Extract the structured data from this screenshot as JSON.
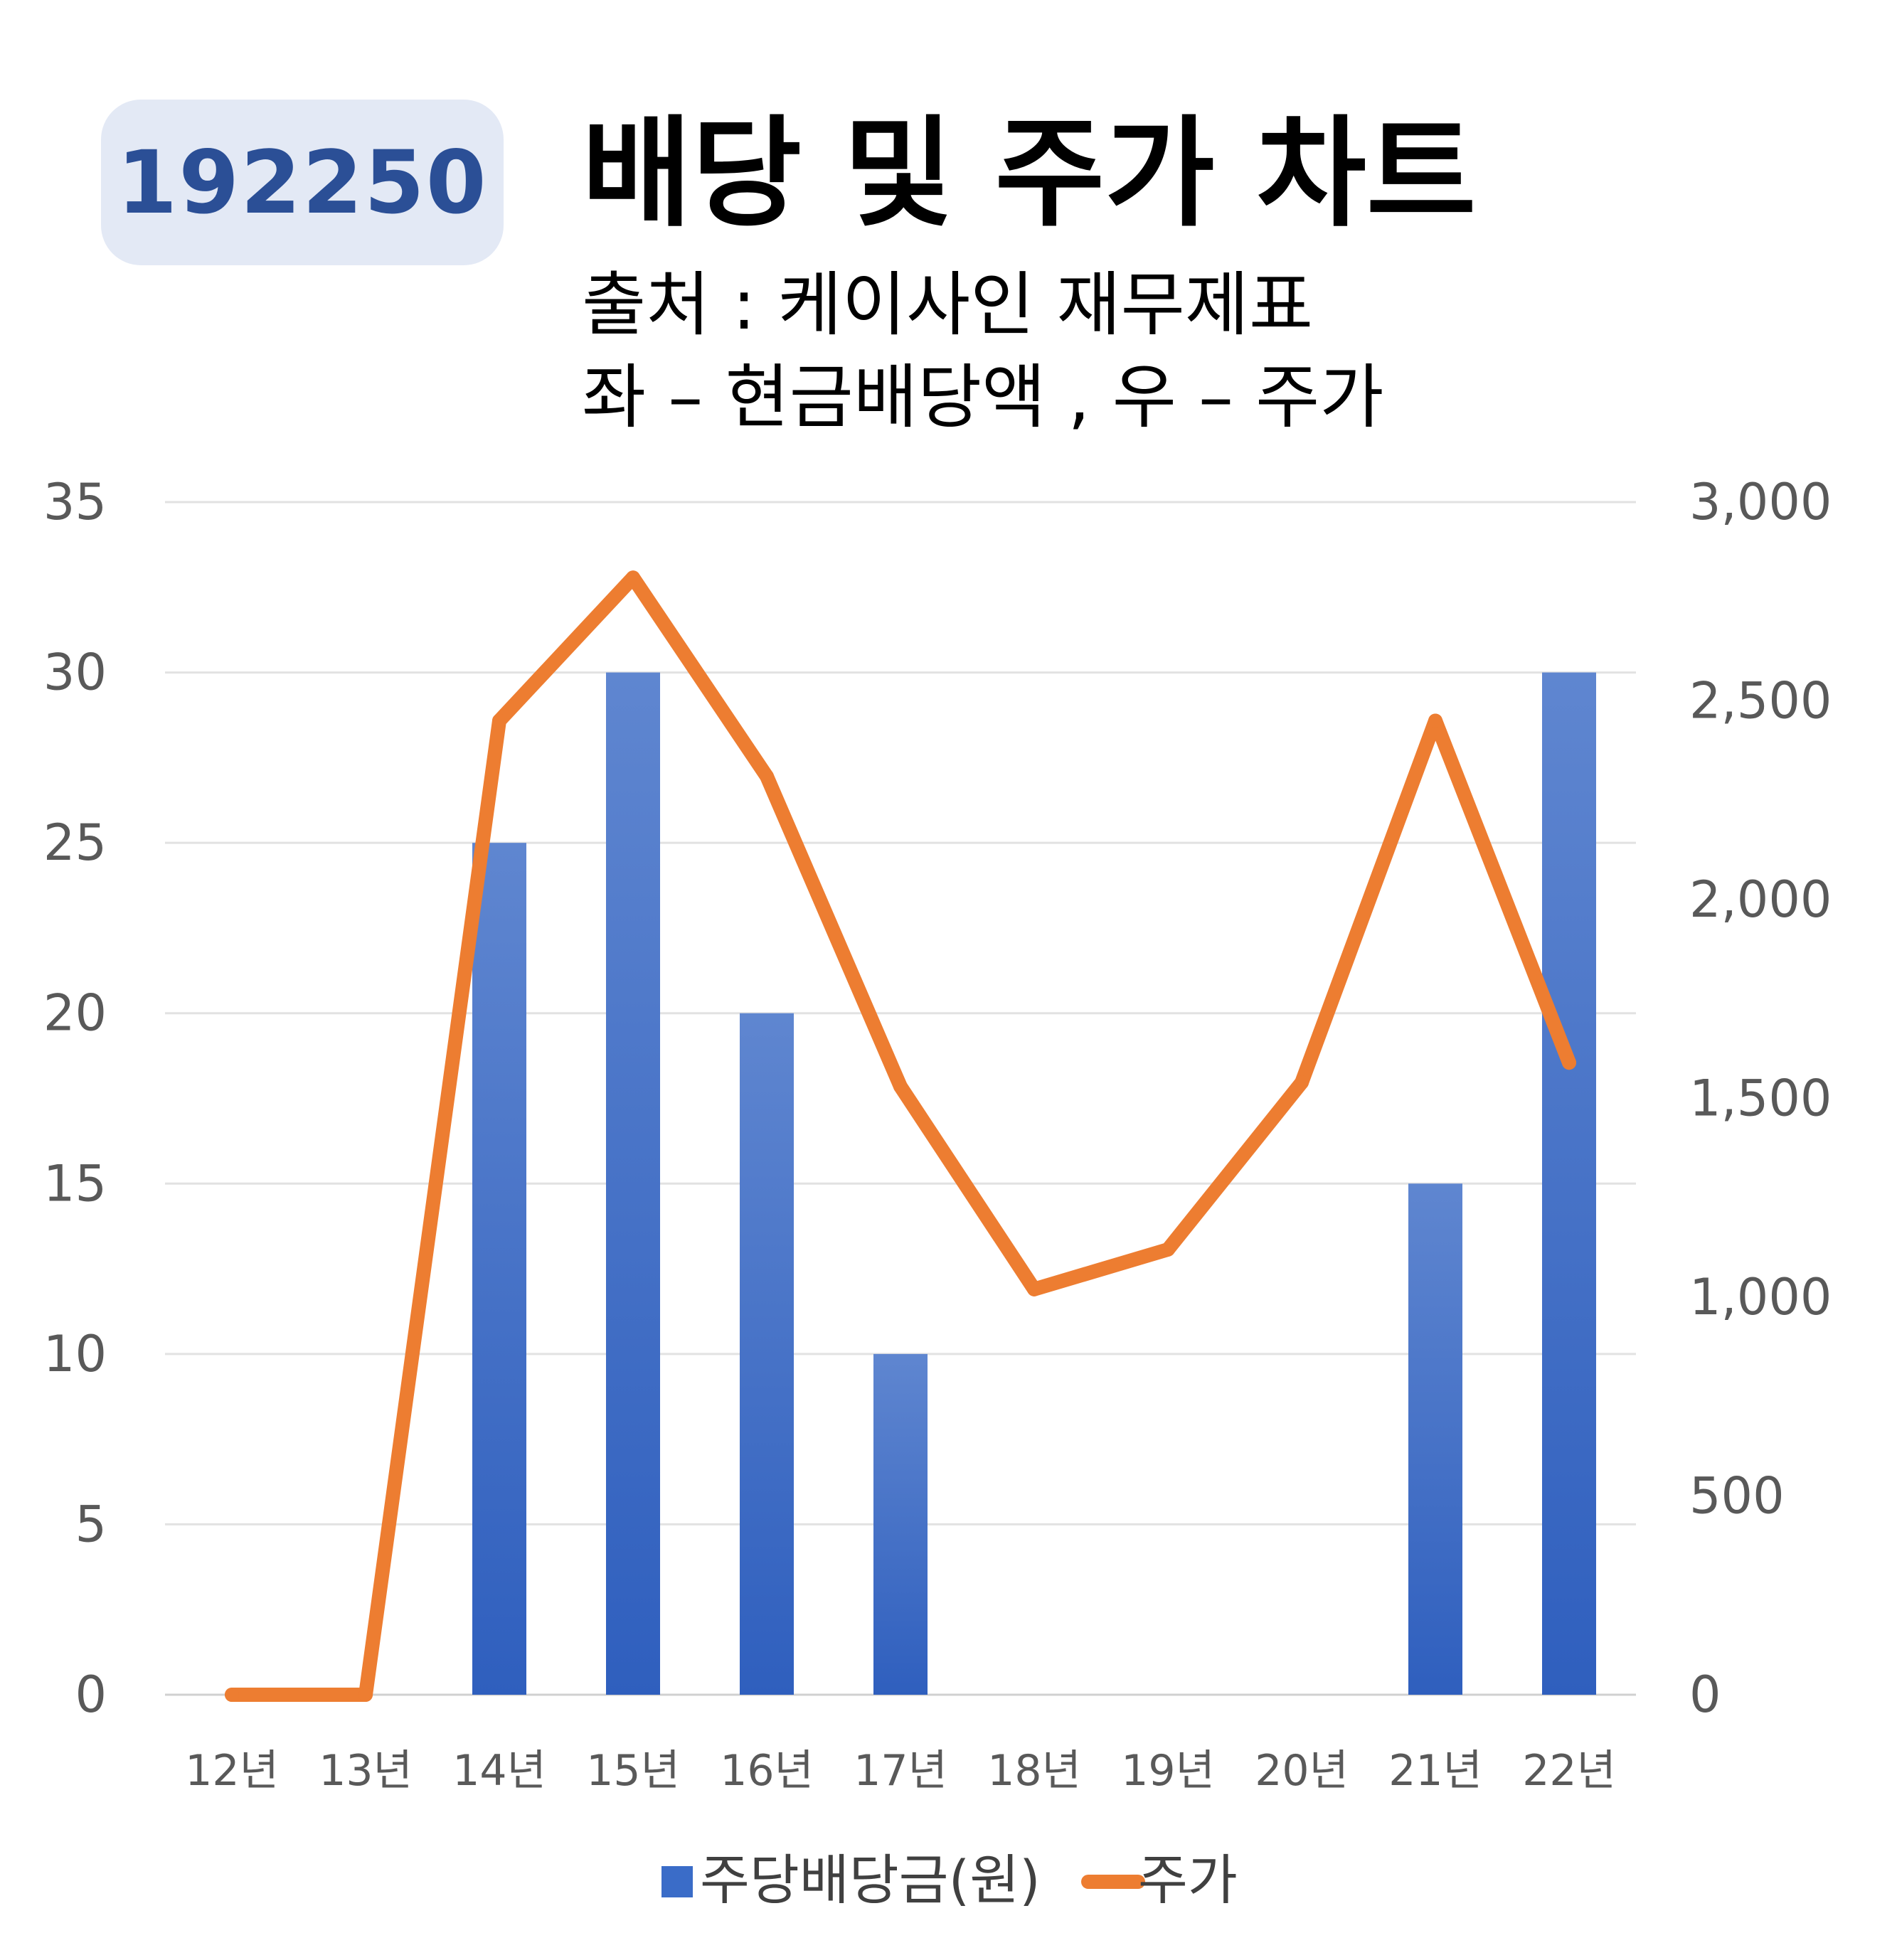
{
  "header": {
    "code": "192250",
    "title": "배당 및 주가 차트",
    "source": "출처 : 케이사인 재무제표",
    "axes_note": "좌 – 현금배당액  ,  우 – 주가"
  },
  "colors": {
    "bar": "#3a6cc8",
    "line": "#ed7d31",
    "badge_bg": "#e3e9f5",
    "badge_text": "#2b4f96"
  },
  "chart_data": {
    "type": "bar",
    "categories": [
      "12년",
      "13년",
      "14년",
      "15년",
      "16년",
      "17년",
      "18년",
      "19년",
      "20년",
      "21년",
      "22년"
    ],
    "series": [
      {
        "name": "주당배당금(원)",
        "type": "bar",
        "axis": "left",
        "values": [
          0,
          0,
          25,
          30,
          20,
          10,
          0,
          0,
          0,
          15,
          30
        ]
      },
      {
        "name": "주가",
        "type": "line",
        "axis": "right",
        "values": [
          0,
          0,
          2450,
          2810,
          2310,
          1530,
          1020,
          1120,
          1540,
          2450,
          1590
        ]
      }
    ],
    "y_left": {
      "min": 0,
      "max": 35,
      "ticks": [
        "0",
        "5",
        "10",
        "15",
        "20",
        "25",
        "30",
        "35"
      ]
    },
    "y_right": {
      "min": 0,
      "max": 3000,
      "ticks": [
        "0",
        "500",
        "1,000",
        "1,500",
        "2,000",
        "2,500",
        "3,000"
      ]
    },
    "grid": true,
    "legend": "bottom"
  }
}
